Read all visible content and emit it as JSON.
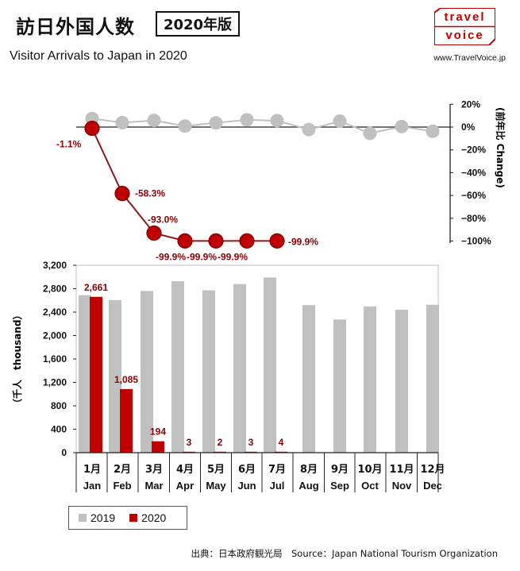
{
  "header": {
    "title_jp": "訪日外国人数",
    "year_badge": "2020年版",
    "subtitle": "Visitor Arrivals to Japan in 2020",
    "logo_line1": "travel",
    "logo_line2": "voice",
    "site_url": "www.TravelVoice.jp"
  },
  "footer": {
    "source": "出典：日本政府観光局　Source：Japan  National Tourism  Organization"
  },
  "colors": {
    "series_2019": "#c0c0c0",
    "series_2020": "#c00000",
    "brand": "#c00000"
  },
  "chart_data": [
    {
      "type": "line",
      "y_axis_title_jp": "(前年比",
      "y_axis_title_en": "Change)",
      "ylim": [
        -100,
        20
      ],
      "yticks": [
        "20%",
        "0%",
        "−20%",
        "−40%",
        "−60%",
        "−80%",
        "−100%"
      ],
      "series": [
        {
          "name": "2019",
          "values": [
            7.5,
            3.8,
            5.8,
            0.9,
            3.7,
            6.4,
            5.6,
            -2.2,
            5.2,
            -5.5,
            0.4,
            -3.7
          ]
        },
        {
          "name": "2020",
          "values": [
            -1.1,
            -58.3,
            -93.0,
            -99.9,
            -99.9,
            -99.9,
            -99.9
          ],
          "labels": [
            "-1.1%",
            "-58.3%",
            "-93.0%",
            "-99.9%",
            "-99.9%",
            "-99.9%",
            "-99.9%"
          ]
        }
      ]
    },
    {
      "type": "bar",
      "categories_jp": [
        "1月",
        "2月",
        "3月",
        "4月",
        "5月",
        "6月",
        "7月",
        "8月",
        "9月",
        "10月",
        "11月",
        "12月"
      ],
      "categories_en": [
        "Jan",
        "Feb",
        "Mar",
        "Apr",
        "May",
        "Jun",
        "Jul",
        "Aug",
        "Sep",
        "Oct",
        "Nov",
        "Dec"
      ],
      "ylabel": "（千人　thousand）",
      "ylim": [
        0,
        3200
      ],
      "yticks": [
        "3,200",
        "2,800",
        "2,400",
        "2,000",
        "1,600",
        "1,200",
        "800",
        "400",
        "0"
      ],
      "series": [
        {
          "name": "2019",
          "values": [
            2689,
            2604,
            2761,
            2927,
            2773,
            2880,
            2991,
            2520,
            2273,
            2497,
            2441,
            2526
          ]
        },
        {
          "name": "2020",
          "values": [
            2661,
            1085,
            194,
            3,
            2,
            3,
            4
          ],
          "labels": [
            "2,661",
            "1,085",
            "194",
            "3",
            "2",
            "3",
            "4"
          ]
        }
      ]
    }
  ]
}
